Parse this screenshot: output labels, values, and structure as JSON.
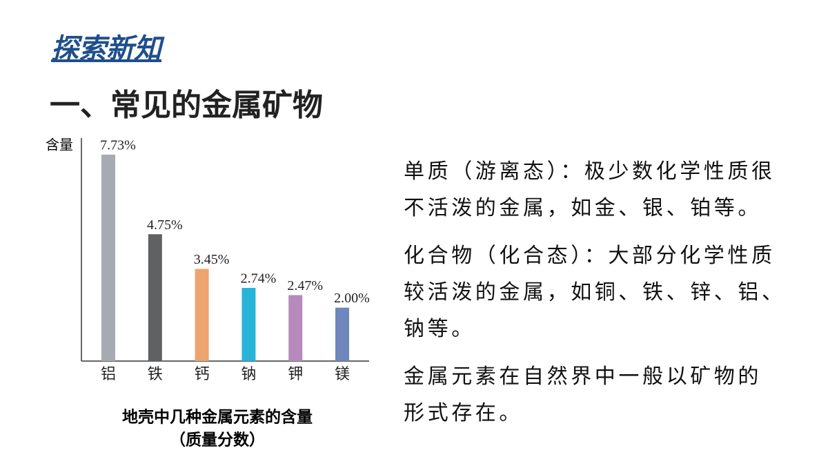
{
  "header": {
    "section": "探索新知",
    "title": "一、常见的金属矿物"
  },
  "chart_data": {
    "type": "bar",
    "y_label": "含量",
    "categories": [
      "铝",
      "铁",
      "钙",
      "钠",
      "钾",
      "镁"
    ],
    "values": [
      7.73,
      4.75,
      3.45,
      2.74,
      2.47,
      2.0
    ],
    "value_labels": [
      "7.73%",
      "4.75%",
      "3.45%",
      "2.74%",
      "2.47%",
      "2.00%"
    ],
    "colors": [
      "#a7aab0",
      "#5f6163",
      "#eda46f",
      "#27b4d8",
      "#b68bbb",
      "#6f87bc"
    ],
    "ylim": [
      0,
      8.35
    ],
    "caption": [
      "地壳中几种金属元素的含量",
      "（质量分数）"
    ]
  },
  "paragraphs": [
    [
      "单质（游离态）：极少数化学性质很",
      "不活泼的金属，如金、银、铂等。"
    ],
    [
      "化合物（化合态）：大部分化学性质",
      "较活泼的金属，如铜、铁、锌、铝、",
      "钠等。"
    ],
    [
      "金属元素在自然界中一般以矿物的",
      "形式存在。"
    ]
  ]
}
